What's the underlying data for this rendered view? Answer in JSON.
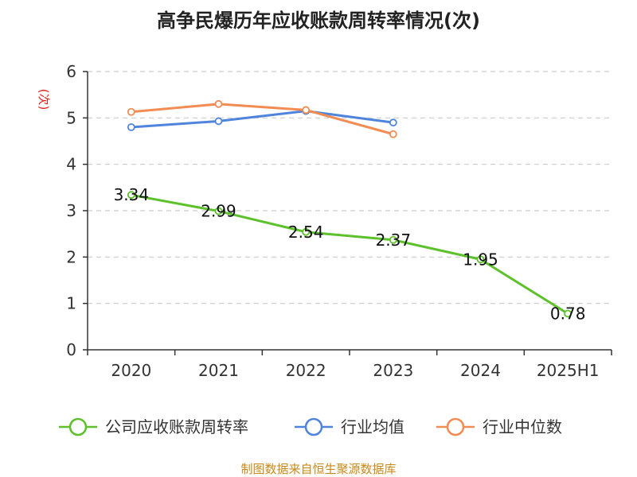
{
  "chart_data": {
    "type": "line",
    "title": "高争民爆历年应收账款周转率情况(次)",
    "ylabel": "(次)",
    "xlabel": "",
    "ylim": [
      0,
      6
    ],
    "yticks": [
      "0",
      "1",
      "2",
      "3",
      "4",
      "5",
      "6"
    ],
    "categories": [
      "2020",
      "2021",
      "2022",
      "2023",
      "2024",
      "2025H1"
    ],
    "grid": true,
    "legend_position": "bottom",
    "series": [
      {
        "name": "公司应收账款周转率",
        "color": "#5cc12b",
        "values": [
          3.34,
          2.99,
          2.54,
          2.37,
          1.95,
          0.78
        ],
        "labels": [
          "3.34",
          "2.99",
          "2.54",
          "2.37",
          "1.95",
          "0.78"
        ]
      },
      {
        "name": "行业均值",
        "color": "#4f84dd",
        "values": [
          4.8,
          4.93,
          5.15,
          4.9,
          null,
          null
        ]
      },
      {
        "name": "行业中位数",
        "color": "#f38c53",
        "values": [
          5.13,
          5.3,
          5.17,
          4.65,
          null,
          null
        ]
      }
    ]
  },
  "source": "制图数据来自恒生聚源数据库"
}
